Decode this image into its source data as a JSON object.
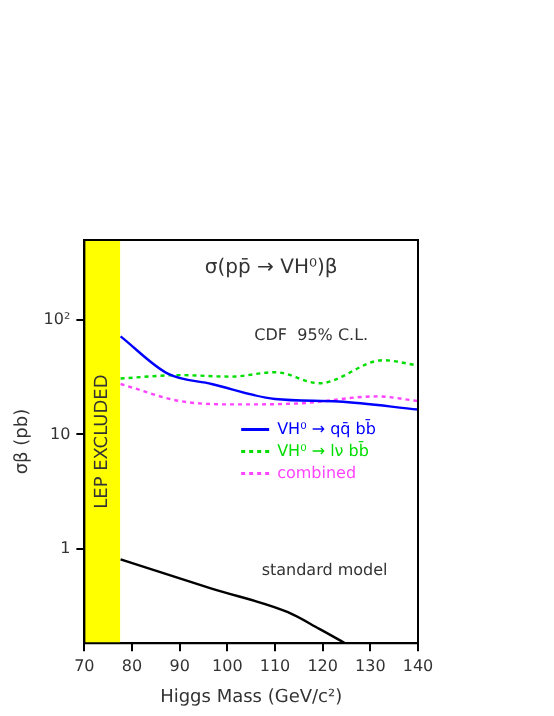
{
  "chart_data": {
    "type": "line",
    "title": "σ(pp̄ → VH⁰)β",
    "xlabel": "Higgs Mass (GeV/c²)",
    "ylabel": "σβ (pb)",
    "annotations": [
      "CDF  95% C.L.",
      "standard model"
    ],
    "log": "y",
    "xlim": [
      70,
      140
    ],
    "xticks": [
      70,
      80,
      90,
      100,
      110,
      120,
      130,
      140
    ],
    "ylim": [
      0.15,
      500
    ],
    "yticks": [
      1,
      10,
      {
        "value": 100,
        "label": "10²"
      }
    ],
    "legend": "right",
    "grid": false,
    "bands": [
      {
        "axis": "x",
        "from": 70,
        "to": 77.5,
        "label": "LEP EXCLUDED",
        "color": "#ffff00"
      }
    ],
    "series": [
      {
        "name": "VH⁰ → qq̄ bb̄",
        "color": "#0000ff",
        "line_style": "solid",
        "x": [
          77.6,
          87.5,
          96.7,
          110,
          123.3,
          140
        ],
        "values": [
          72,
          34,
          27.6,
          20.4,
          19.4,
          16.5
        ]
      },
      {
        "name": "VH⁰ → lν bb̄",
        "color": "#00dd00",
        "line_style": "dotted",
        "x": [
          77.6,
          90,
          100.7,
          110,
          119.3,
          132.7,
          140
        ],
        "values": [
          30.8,
          33,
          32,
          35,
          28,
          44.5,
          40
        ]
      },
      {
        "name": "combined",
        "color": "#ff44ff",
        "line_style": "dotted",
        "x": [
          77.6,
          90,
          102,
          115.3,
          131.3,
          140
        ],
        "values": [
          27.6,
          19.6,
          18.3,
          18.7,
          21.5,
          19.6
        ]
      },
      {
        "color": "#000000",
        "line_style": "solid",
        "x": [
          77.6,
          96.7,
          112.7,
          119.3,
          124.7
        ],
        "values": [
          0.81,
          0.45,
          0.28,
          0.2,
          0.15
        ]
      }
    ]
  }
}
